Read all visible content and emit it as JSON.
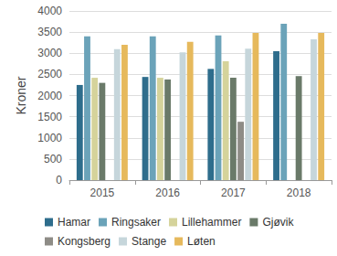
{
  "chart_data": {
    "type": "bar",
    "y_label": "Kroner",
    "categories": [
      "2015",
      "2016",
      "2017",
      "2018"
    ],
    "series": [
      {
        "name": "Hamar",
        "color": "#2e6d8c",
        "values": [
          2250,
          2440,
          2630,
          3050
        ]
      },
      {
        "name": "Ringsaker",
        "color": "#6ba3b9",
        "values": [
          3400,
          3400,
          3420,
          3700
        ]
      },
      {
        "name": "Lillehammer",
        "color": "#d5d39b",
        "values": [
          2420,
          2420,
          2810,
          null
        ]
      },
      {
        "name": "Gjøvik",
        "color": "#6a7a69",
        "values": [
          2300,
          2380,
          2420,
          2460
        ]
      },
      {
        "name": "Kongsberg",
        "color": "#8e8c86",
        "values": [
          null,
          null,
          1380,
          null
        ]
      },
      {
        "name": "Stange",
        "color": "#c6d6db",
        "values": [
          3100,
          3020,
          3110,
          3330
        ]
      },
      {
        "name": "Løten",
        "color": "#e6b95c",
        "values": [
          3200,
          3270,
          3480,
          3480
        ]
      }
    ],
    "ylim": [
      0,
      4000
    ],
    "yticks": [
      0,
      500,
      1000,
      1500,
      2000,
      2500,
      3000,
      3500,
      4000
    ],
    "grid": true,
    "legend": "bottom"
  }
}
